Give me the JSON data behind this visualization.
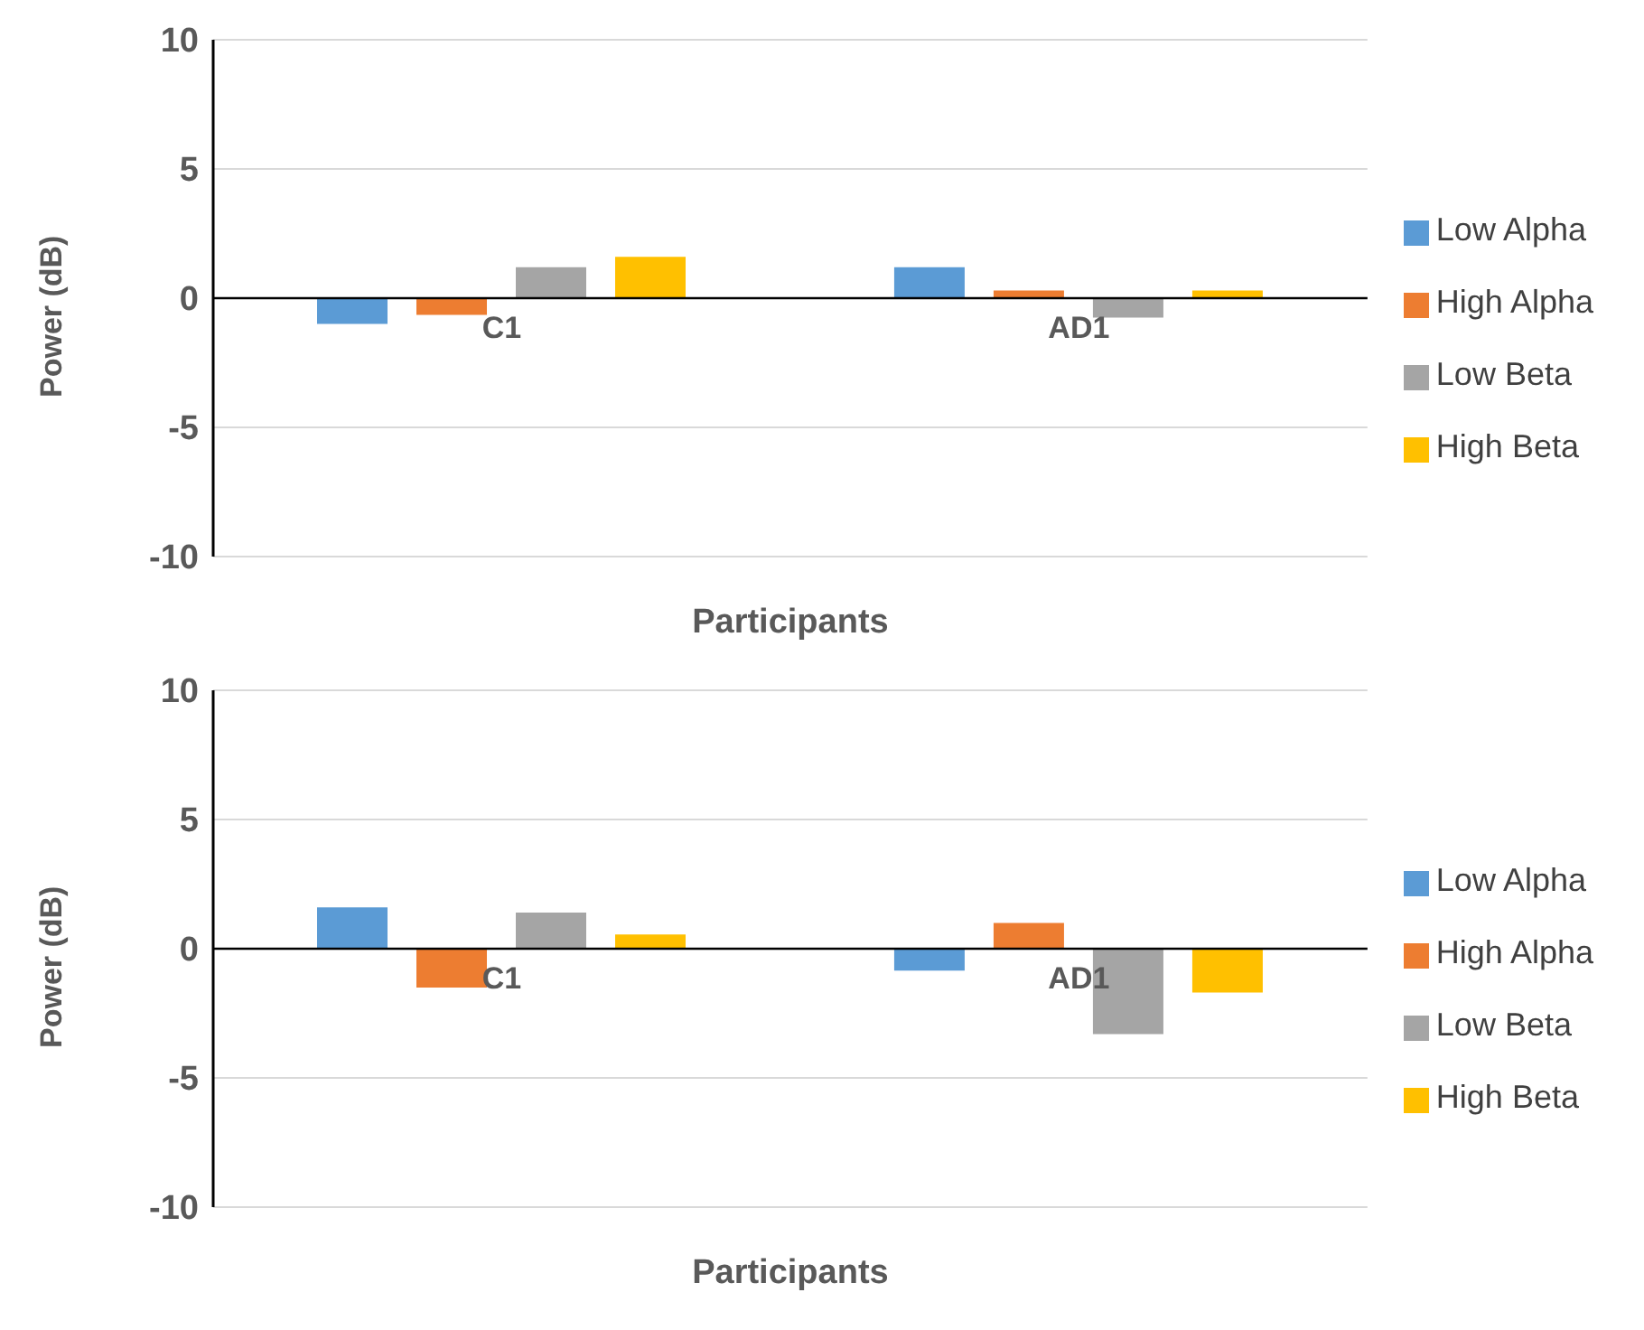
{
  "chart_data": [
    {
      "type": "bar",
      "xlabel": "Participants",
      "ylabel": "Power (dB)",
      "categories": [
        "C1",
        "AD1"
      ],
      "ylim": [
        -10,
        10
      ],
      "yticks": [
        -10,
        -5,
        0,
        5,
        10
      ],
      "grid": "y",
      "legend": "right",
      "series": [
        {
          "name": "Low Alpha",
          "color": "#5b9bd5",
          "values": [
            -1.0,
            1.2
          ]
        },
        {
          "name": "High Alpha",
          "color": "#ed7d31",
          "values": [
            -0.65,
            0.3
          ]
        },
        {
          "name": "Low Beta",
          "color": "#a5a5a5",
          "values": [
            1.2,
            -0.75
          ]
        },
        {
          "name": "High Beta",
          "color": "#ffc000",
          "values": [
            1.6,
            0.3
          ]
        }
      ]
    },
    {
      "type": "bar",
      "xlabel": "Participants",
      "ylabel": "Power (dB)",
      "categories": [
        "C1",
        "AD1"
      ],
      "ylim": [
        -10,
        10
      ],
      "yticks": [
        -10,
        -5,
        0,
        5,
        10
      ],
      "grid": "y",
      "legend": "right",
      "series": [
        {
          "name": "Low Alpha",
          "color": "#5b9bd5",
          "values": [
            1.6,
            -0.85
          ]
        },
        {
          "name": "High Alpha",
          "color": "#ed7d31",
          "values": [
            -1.5,
            1.0
          ]
        },
        {
          "name": "Low Beta",
          "color": "#a5a5a5",
          "values": [
            1.4,
            -3.3
          ]
        },
        {
          "name": "High Beta",
          "color": "#ffc000",
          "values": [
            0.55,
            -1.7
          ]
        }
      ]
    }
  ]
}
